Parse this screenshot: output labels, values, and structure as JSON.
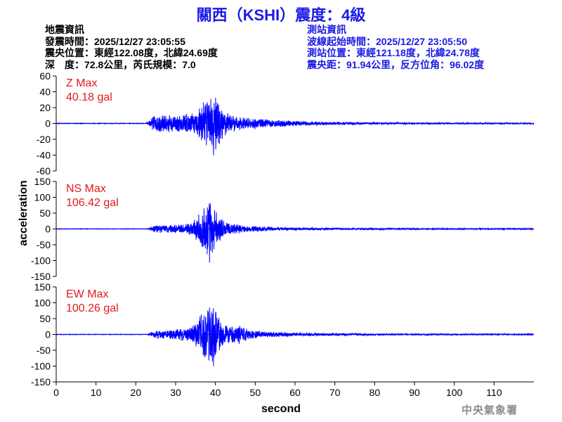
{
  "header": {
    "title": "關西（KSHI）震度：4級"
  },
  "quake_info": {
    "heading": "地震資訊",
    "origin_time": "發震時間：2025/12/27 23:05:55",
    "epicenter": "震央位置：東經122.08度，北緯24.69度",
    "depth_magnitude": "深　度：72.8公里，芮氏規模：7.0"
  },
  "station_info": {
    "heading": "測站資訊",
    "wave_start": "波線起始時間：2025/12/27 23:05:50",
    "location": "測站位置：東經121.18度，北緯24.78度",
    "distance": "震央距：91.94公里，反方位角：96.02度"
  },
  "credit": "中央氣象署",
  "colors": {
    "trace": "#0000ff",
    "max_label": "#e61919",
    "title": "#1a1ae6"
  },
  "chart_data": {
    "type": "line",
    "xlabel": "second",
    "ylabel": "acceleration",
    "xlim": [
      0,
      120
    ],
    "xticks": [
      "0",
      "10",
      "20",
      "30",
      "40",
      "50",
      "60",
      "70",
      "80",
      "90",
      "100",
      "110"
    ],
    "panels": [
      {
        "component": "Z",
        "max_label": "Z Max",
        "max_value": "40.18 gal",
        "ylim": [
          -60,
          60
        ],
        "yticks": [
          "60",
          "40",
          "20",
          "0",
          "-20",
          "-40",
          "-60"
        ],
        "envelope": [
          [
            0,
            0.4
          ],
          [
            22.5,
            0.4
          ],
          [
            23.5,
            4
          ],
          [
            24.5,
            11
          ],
          [
            26,
            13
          ],
          [
            28,
            12
          ],
          [
            30,
            10
          ],
          [
            32,
            12
          ],
          [
            34,
            14
          ],
          [
            35.5,
            20
          ],
          [
            36.5,
            25
          ],
          [
            37.5,
            32
          ],
          [
            38.5,
            34
          ],
          [
            39.5,
            40.18
          ],
          [
            40.5,
            30
          ],
          [
            41.5,
            22
          ],
          [
            43,
            14
          ],
          [
            45,
            10
          ],
          [
            48,
            7
          ],
          [
            52,
            6
          ],
          [
            56,
            4.5
          ],
          [
            60,
            3.5
          ],
          [
            65,
            2.5
          ],
          [
            70,
            2
          ],
          [
            80,
            1.5
          ],
          [
            90,
            1.1
          ],
          [
            100,
            0.9
          ],
          [
            110,
            0.8
          ],
          [
            120,
            0.7
          ]
        ]
      },
      {
        "component": "NS",
        "max_label": "NS Max",
        "max_value": "106.42 gal",
        "ylim": [
          -150,
          150
        ],
        "yticks": [
          "150",
          "100",
          "50",
          "0",
          "-50",
          "-100",
          "-150"
        ],
        "envelope": [
          [
            0,
            0.8
          ],
          [
            23,
            0.8
          ],
          [
            24,
            8
          ],
          [
            26,
            14
          ],
          [
            28,
            12
          ],
          [
            30,
            14
          ],
          [
            32,
            16
          ],
          [
            34,
            20
          ],
          [
            35.5,
            40
          ],
          [
            36.5,
            60
          ],
          [
            37.5,
            85
          ],
          [
            38.5,
            106.42
          ],
          [
            39.5,
            75
          ],
          [
            40.5,
            50
          ],
          [
            42,
            28
          ],
          [
            44,
            18
          ],
          [
            47,
            12
          ],
          [
            50,
            9
          ],
          [
            55,
            6
          ],
          [
            60,
            4.5
          ],
          [
            70,
            3.2
          ],
          [
            80,
            2.6
          ],
          [
            90,
            2.2
          ],
          [
            100,
            2
          ],
          [
            110,
            1.9
          ],
          [
            120,
            1.8
          ]
        ]
      },
      {
        "component": "EW",
        "max_label": "EW Max",
        "max_value": "100.26 gal",
        "ylim": [
          -150,
          150
        ],
        "yticks": [
          "150",
          "100",
          "50",
          "0",
          "-50",
          "-100",
          "-150"
        ],
        "envelope": [
          [
            0,
            0.8
          ],
          [
            23,
            0.8
          ],
          [
            24,
            9
          ],
          [
            26,
            16
          ],
          [
            28,
            14
          ],
          [
            30,
            18
          ],
          [
            32,
            22
          ],
          [
            34,
            28
          ],
          [
            35.5,
            45
          ],
          [
            36.5,
            70
          ],
          [
            37.5,
            85
          ],
          [
            38.5,
            95
          ],
          [
            39.5,
            100.26
          ],
          [
            40.5,
            60
          ],
          [
            42,
            38
          ],
          [
            44,
            28
          ],
          [
            46,
            30
          ],
          [
            48,
            18
          ],
          [
            50,
            12
          ],
          [
            55,
            8
          ],
          [
            60,
            6
          ],
          [
            70,
            4
          ],
          [
            80,
            3
          ],
          [
            90,
            2.5
          ],
          [
            100,
            2.2
          ],
          [
            110,
            2
          ],
          [
            120,
            1.9
          ]
        ]
      }
    ]
  }
}
